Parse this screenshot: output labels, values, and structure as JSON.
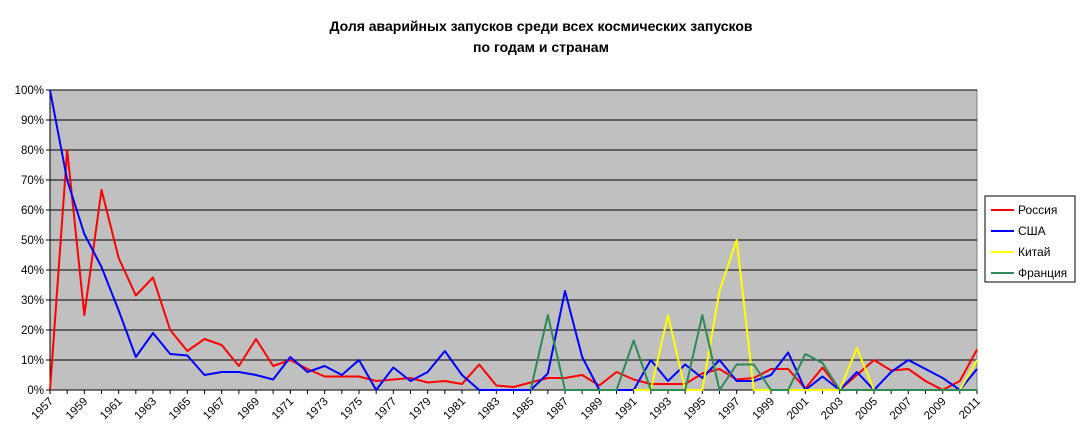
{
  "chart_data": {
    "type": "line",
    "title": "Доля аварийных запусков среди всех космических запусков",
    "subtitle": "по годам и странам",
    "xlabel": "",
    "ylabel": "",
    "x": [
      1957,
      1958,
      1959,
      1960,
      1961,
      1962,
      1963,
      1964,
      1965,
      1966,
      1967,
      1968,
      1969,
      1970,
      1971,
      1972,
      1973,
      1974,
      1975,
      1976,
      1977,
      1978,
      1979,
      1980,
      1981,
      1982,
      1983,
      1984,
      1985,
      1986,
      1987,
      1988,
      1989,
      1990,
      1991,
      1992,
      1993,
      1994,
      1995,
      1996,
      1997,
      1998,
      1999,
      2000,
      2001,
      2002,
      2003,
      2004,
      2005,
      2006,
      2007,
      2008,
      2009,
      2010,
      2011
    ],
    "x_tick_labels": [
      "1957",
      "1959",
      "1961",
      "1963",
      "1965",
      "1967",
      "1969",
      "1971",
      "1973",
      "1975",
      "1977",
      "1979",
      "1981",
      "1983",
      "1985",
      "1987",
      "1989",
      "1991",
      "1993",
      "1995",
      "1997",
      "1999",
      "2001",
      "2003",
      "2005",
      "2007",
      "2009",
      "2011"
    ],
    "y_tick_labels": [
      "0%",
      "10%",
      "20%",
      "30%",
      "40%",
      "50%",
      "60%",
      "70%",
      "80%",
      "90%",
      "100%"
    ],
    "ylim": [
      0,
      100
    ],
    "grid": "horizontal",
    "plot_background": "#c0c0c0",
    "legend_position": "right",
    "series": [
      {
        "name": "Россия",
        "color": "#ff0000",
        "values": [
          0,
          80,
          25,
          66.7,
          44,
          31.5,
          37.5,
          20,
          13,
          17,
          15,
          8,
          17,
          8,
          10,
          7,
          4.5,
          4.5,
          4.5,
          3,
          3.5,
          4,
          2.5,
          3,
          2,
          8.5,
          1.5,
          1,
          2.5,
          4,
          4,
          5,
          1.5,
          6,
          3.5,
          2,
          2,
          2,
          5.5,
          7,
          3.5,
          4,
          7,
          7,
          0.5,
          7.5,
          0,
          5,
          10,
          6.5,
          7,
          3,
          0,
          3,
          13.5
        ]
      },
      {
        "name": "США",
        "color": "#0000ff",
        "values": [
          100,
          70,
          52,
          41,
          26.5,
          11,
          19,
          12,
          11.5,
          5,
          6,
          6,
          5,
          3.5,
          11,
          6,
          8,
          5,
          10,
          0,
          7.5,
          3,
          6,
          13,
          5,
          0,
          0,
          0,
          0,
          5.5,
          33,
          11,
          0,
          0,
          0,
          10,
          3,
          8.5,
          4,
          10,
          3,
          3,
          5,
          12.5,
          0,
          4.5,
          0,
          6,
          0,
          6,
          10,
          7,
          4,
          0,
          7
        ]
      },
      {
        "name": "Китай",
        "color": "#ffff00",
        "values": [
          null,
          null,
          null,
          null,
          null,
          null,
          null,
          null,
          null,
          null,
          null,
          null,
          null,
          null,
          null,
          null,
          null,
          null,
          null,
          null,
          null,
          null,
          null,
          null,
          null,
          null,
          null,
          null,
          null,
          null,
          null,
          null,
          null,
          null,
          0,
          0,
          25,
          0,
          0,
          33,
          50,
          0,
          0,
          0,
          0,
          0,
          0,
          14,
          0,
          0,
          0,
          0,
          0,
          0,
          10
        ]
      },
      {
        "name": "Франция",
        "color": "#2e8b57",
        "values": [
          null,
          null,
          null,
          null,
          null,
          null,
          null,
          null,
          null,
          null,
          null,
          null,
          null,
          null,
          null,
          null,
          null,
          null,
          null,
          null,
          null,
          null,
          null,
          null,
          null,
          null,
          null,
          null,
          0,
          25,
          0,
          0,
          0,
          0,
          16.5,
          0,
          0,
          0,
          25,
          0,
          8.5,
          8.5,
          0,
          0,
          12,
          9,
          0,
          0,
          0,
          0,
          0,
          0,
          0,
          0,
          0
        ]
      }
    ]
  }
}
